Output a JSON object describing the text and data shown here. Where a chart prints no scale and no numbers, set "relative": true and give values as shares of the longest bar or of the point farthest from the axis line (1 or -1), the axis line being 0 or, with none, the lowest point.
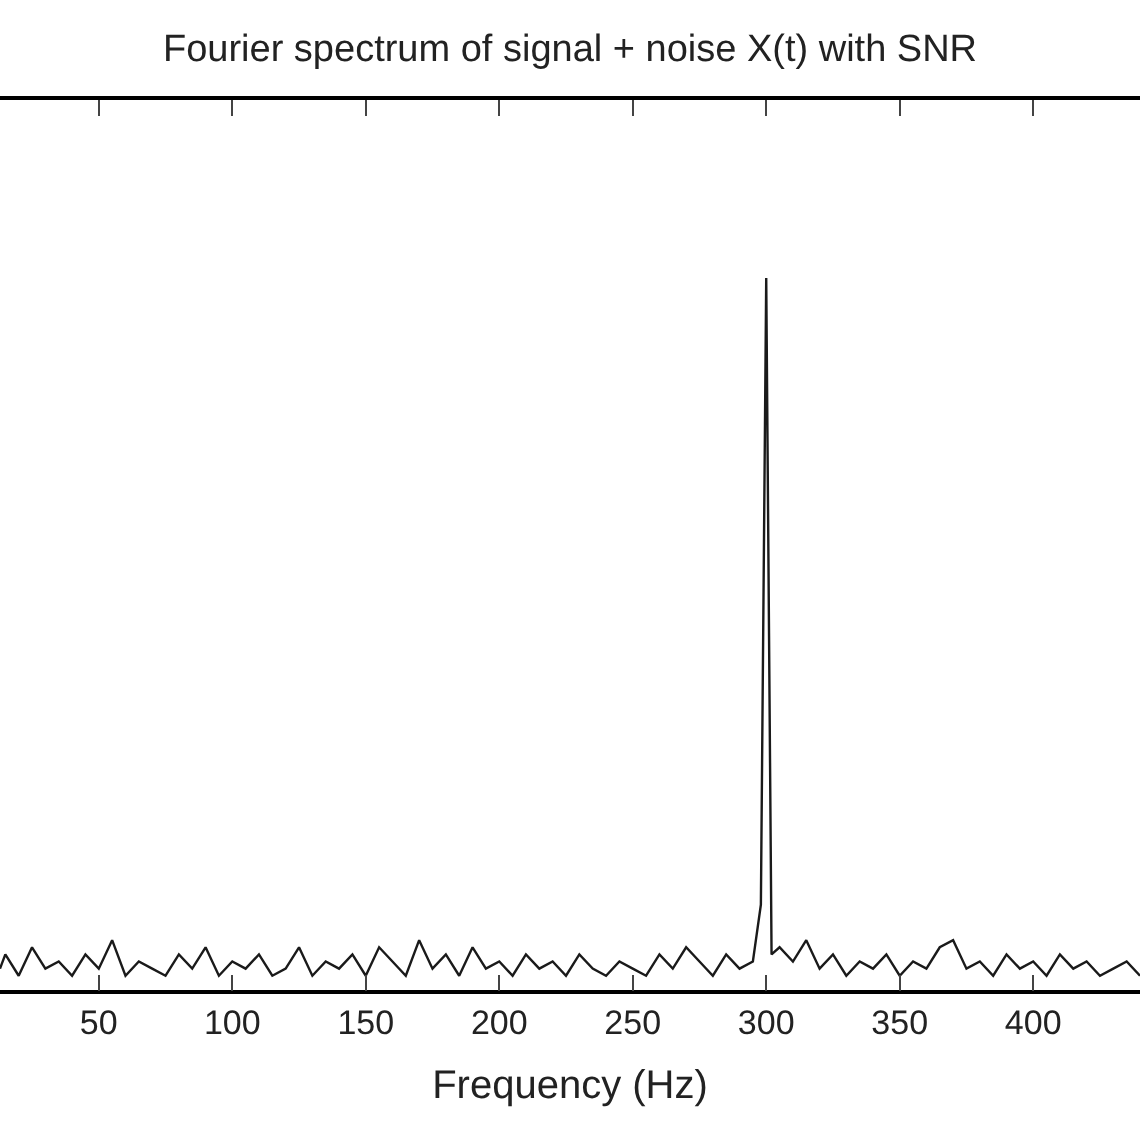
{
  "chart_data": {
    "type": "line",
    "title": "Fourier spectrum of signal + noise X(t) with SNR",
    "xlabel": "Frequency (Hz)",
    "relative": true,
    "x": [
      13,
      15,
      20,
      25,
      30,
      35,
      40,
      45,
      50,
      55,
      60,
      65,
      70,
      75,
      80,
      85,
      90,
      95,
      100,
      105,
      110,
      115,
      120,
      125,
      130,
      135,
      140,
      145,
      150,
      155,
      160,
      165,
      170,
      175,
      180,
      185,
      190,
      195,
      200,
      205,
      210,
      215,
      220,
      225,
      230,
      235,
      240,
      245,
      250,
      255,
      260,
      265,
      270,
      275,
      280,
      285,
      290,
      295,
      298,
      300,
      302,
      305,
      310,
      315,
      320,
      325,
      330,
      335,
      340,
      345,
      350,
      355,
      360,
      365,
      370,
      375,
      380,
      385,
      390,
      395,
      400,
      405,
      410,
      415,
      420,
      425,
      430,
      435,
      440
    ],
    "series": [
      {
        "color": "#1a1a1a",
        "values": [
          0.03,
          0.05,
          0.02,
          0.06,
          0.03,
          0.04,
          0.02,
          0.05,
          0.03,
          0.07,
          0.02,
          0.04,
          0.03,
          0.02,
          0.05,
          0.03,
          0.06,
          0.02,
          0.04,
          0.03,
          0.05,
          0.02,
          0.03,
          0.06,
          0.02,
          0.04,
          0.03,
          0.05,
          0.02,
          0.06,
          0.04,
          0.02,
          0.07,
          0.03,
          0.05,
          0.02,
          0.06,
          0.03,
          0.04,
          0.02,
          0.05,
          0.03,
          0.04,
          0.02,
          0.05,
          0.03,
          0.02,
          0.04,
          0.03,
          0.02,
          0.05,
          0.03,
          0.06,
          0.04,
          0.02,
          0.05,
          0.03,
          0.04,
          0.12,
          1,
          0.05,
          0.06,
          0.04,
          0.07,
          0.03,
          0.05,
          0.02,
          0.04,
          0.03,
          0.05,
          0.02,
          0.04,
          0.03,
          0.06,
          0.07,
          0.03,
          0.04,
          0.02,
          0.05,
          0.03,
          0.04,
          0.02,
          0.05,
          0.03,
          0.04,
          0.02,
          0.03,
          0.04,
          0.02
        ]
      }
    ],
    "xticks": [
      50,
      100,
      150,
      200,
      250,
      300,
      350,
      400
    ],
    "xlim": [
      13,
      440
    ]
  }
}
